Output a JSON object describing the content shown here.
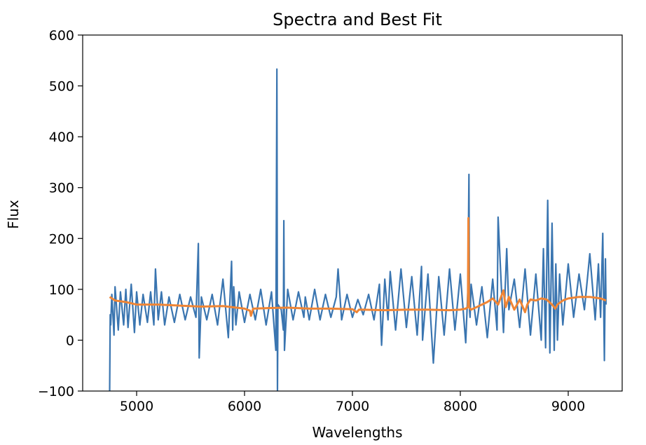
{
  "chart_data": {
    "type": "line",
    "title": "Spectra and Best Fit",
    "xlabel": "Wavelengths",
    "ylabel": "Flux",
    "xlim": [
      4500,
      9500
    ],
    "ylim": [
      -100,
      600
    ],
    "x_ticks": [
      5000,
      6000,
      7000,
      8000,
      9000
    ],
    "y_ticks": [
      -100,
      0,
      100,
      200,
      300,
      400,
      500,
      600
    ],
    "x_tick_labels": [
      "5000",
      "6000",
      "7000",
      "8000",
      "9000"
    ],
    "y_tick_labels": [
      "−100",
      "0",
      "100",
      "200",
      "300",
      "400",
      "500",
      "600"
    ],
    "grid": false,
    "series": [
      {
        "color": "#3a75b0",
        "x": [
          4750,
          4755,
          4760,
          4770,
          4790,
          4800,
          4830,
          4850,
          4880,
          4900,
          4920,
          4950,
          4980,
          5000,
          5030,
          5060,
          5100,
          5130,
          5160,
          5175,
          5200,
          5230,
          5260,
          5300,
          5350,
          5400,
          5450,
          5500,
          5550,
          5572,
          5580,
          5600,
          5650,
          5700,
          5750,
          5800,
          5850,
          5880,
          5890,
          5900,
          5920,
          5950,
          6000,
          6050,
          6100,
          6150,
          6200,
          6250,
          6290,
          6300,
          6305,
          6310,
          6340,
          6360,
          6364,
          6370,
          6400,
          6450,
          6500,
          6550,
          6563,
          6600,
          6650,
          6700,
          6750,
          6800,
          6850,
          6867,
          6900,
          6950,
          7000,
          7050,
          7100,
          7150,
          7200,
          7250,
          7270,
          7300,
          7330,
          7350,
          7400,
          7450,
          7500,
          7550,
          7600,
          7640,
          7650,
          7700,
          7750,
          7800,
          7850,
          7900,
          7950,
          8000,
          8050,
          8070,
          8080,
          8085,
          8090,
          8100,
          8150,
          8200,
          8250,
          8300,
          8340,
          8350,
          8400,
          8430,
          8450,
          8500,
          8550,
          8600,
          8650,
          8700,
          8750,
          8770,
          8790,
          8810,
          8830,
          8850,
          8870,
          8885,
          8900,
          8920,
          8950,
          9000,
          9050,
          9100,
          9150,
          9200,
          9250,
          9280,
          9300,
          9320,
          9335,
          9345,
          9350
        ],
        "values": [
          -100,
          50,
          30,
          90,
          10,
          105,
          20,
          95,
          30,
          100,
          25,
          110,
          15,
          95,
          30,
          90,
          35,
          95,
          30,
          140,
          40,
          95,
          30,
          85,
          35,
          90,
          40,
          85,
          45,
          190,
          -35,
          85,
          40,
          90,
          30,
          120,
          5,
          155,
          20,
          105,
          30,
          95,
          35,
          90,
          40,
          100,
          30,
          95,
          -20,
          533,
          -100,
          70,
          60,
          20,
          235,
          -20,
          100,
          40,
          95,
          45,
          85,
          40,
          100,
          40,
          90,
          45,
          85,
          140,
          40,
          90,
          45,
          80,
          50,
          90,
          40,
          110,
          -10,
          120,
          40,
          135,
          20,
          140,
          25,
          125,
          10,
          145,
          0,
          130,
          -45,
          125,
          10,
          140,
          20,
          130,
          -5,
          100,
          326,
          60,
          45,
          110,
          30,
          105,
          5,
          120,
          20,
          242,
          15,
          180,
          60,
          120,
          25,
          140,
          10,
          130,
          0,
          180,
          -15,
          275,
          -25,
          230,
          -20,
          150,
          0,
          130,
          30,
          150,
          45,
          130,
          60,
          170,
          40,
          150,
          45,
          210,
          -40,
          160,
          70
        ]
      },
      {
        "color": "#ef8535",
        "x": [
          4750,
          4800,
          4900,
          5000,
          5200,
          5400,
          5600,
          5800,
          6000,
          6050,
          6060,
          6080,
          6200,
          6400,
          6600,
          6800,
          7000,
          7040,
          7060,
          7100,
          7300,
          7500,
          7700,
          7900,
          8000,
          8050,
          8070,
          8075,
          8080,
          8090,
          8100,
          8150,
          8200,
          8250,
          8300,
          8350,
          8400,
          8420,
          8450,
          8500,
          8550,
          8600,
          8620,
          8650,
          8700,
          8750,
          8800,
          8850,
          8880,
          8900,
          8950,
          9000,
          9100,
          9200,
          9300,
          9350
        ],
        "values": [
          85,
          78,
          75,
          70,
          70,
          68,
          66,
          67,
          62,
          58,
          48,
          62,
          63,
          64,
          62,
          62,
          61,
          55,
          60,
          60,
          59,
          60,
          60,
          59,
          60,
          62,
          65,
          240,
          65,
          62,
          60,
          65,
          70,
          75,
          82,
          70,
          98,
          65,
          85,
          60,
          80,
          55,
          70,
          80,
          78,
          82,
          80,
          70,
          62,
          70,
          78,
          82,
          85,
          85,
          82,
          78
        ]
      }
    ]
  }
}
